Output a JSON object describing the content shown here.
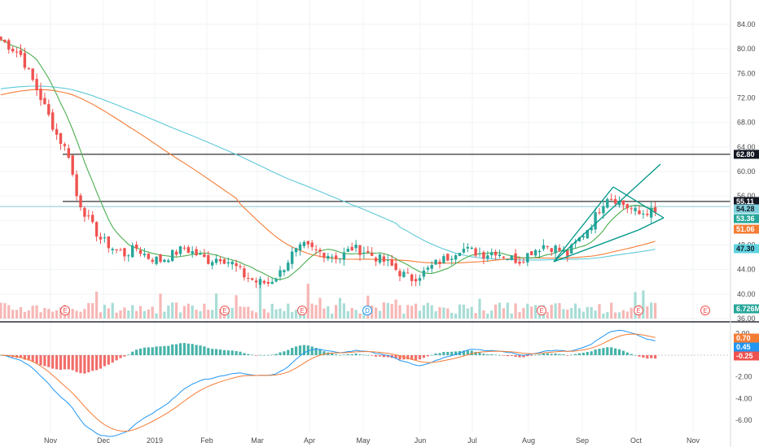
{
  "chart_data": [
    {
      "type": "candlestick",
      "panel": "price",
      "x_labels": [
        "Nov",
        "Dec",
        "2019",
        "Feb",
        "Mar",
        "Apr",
        "May",
        "Jun",
        "Jul",
        "Aug",
        "Sep",
        "Oct",
        "Nov"
      ],
      "ylim": [
        36,
        86
      ],
      "y_ticks": [
        "84.00",
        "80.00",
        "76.00",
        "72.00",
        "68.00",
        "64.00",
        "60.00",
        "56.00",
        "52.00",
        "48.00",
        "44.00",
        "40.00",
        "36.00"
      ],
      "price_path": [
        [
          0,
          81.5
        ],
        [
          5,
          79
        ],
        [
          10,
          72
        ],
        [
          14,
          66
        ],
        [
          17,
          62.8
        ],
        [
          19,
          56
        ],
        [
          22,
          52
        ],
        [
          25,
          49
        ],
        [
          28,
          47.5
        ],
        [
          31,
          46.5
        ],
        [
          34,
          47.5
        ],
        [
          37,
          46
        ],
        [
          40,
          45.5
        ],
        [
          43,
          46.5
        ],
        [
          46,
          47.5
        ],
        [
          49,
          46.5
        ],
        [
          52,
          45.5
        ],
        [
          55,
          46
        ],
        [
          58,
          45
        ],
        [
          61,
          43
        ],
        [
          64,
          42
        ],
        [
          67,
          41.8
        ],
        [
          70,
          43.5
        ],
        [
          73,
          46.5
        ],
        [
          76,
          47.8
        ],
        [
          79,
          47
        ],
        [
          82,
          46.5
        ],
        [
          85,
          46
        ],
        [
          88,
          47.5
        ],
        [
          91,
          47
        ],
        [
          94,
          46
        ],
        [
          97,
          45
        ],
        [
          100,
          43.5
        ],
        [
          103,
          42.5
        ],
        [
          106,
          43.5
        ],
        [
          109,
          45
        ],
        [
          112,
          46
        ],
        [
          115,
          47.5
        ],
        [
          118,
          47
        ],
        [
          121,
          46.5
        ],
        [
          124,
          47
        ],
        [
          127,
          46
        ],
        [
          130,
          45.5
        ],
        [
          133,
          47
        ],
        [
          136,
          48
        ],
        [
          139,
          47.5
        ],
        [
          142,
          46.5
        ],
        [
          145,
          49
        ],
        [
          148,
          51.5
        ],
        [
          150,
          54
        ],
        [
          152,
          56
        ],
        [
          154,
          55.5
        ],
        [
          157,
          54.2
        ],
        [
          160,
          53
        ],
        [
          162,
          53.5
        ],
        [
          164,
          53.36
        ]
      ],
      "levels": [
        {
          "label": "62.80",
          "value": 62.8,
          "color": "#000000"
        },
        {
          "label": "55.11",
          "value": 55.11,
          "color": "#000000"
        },
        {
          "label": "54.28",
          "value": 54.28,
          "color": "#89c9cf"
        }
      ],
      "price_tags": [
        {
          "label": "62.80",
          "value": 62.8,
          "bg": "#131722",
          "fg": "#ffffff"
        },
        {
          "label": "55.11",
          "value": 55.11,
          "bg": "#131722",
          "fg": "#ffffff"
        },
        {
          "label": "54.28",
          "value": 54.28,
          "bg": "#7fd0dc",
          "fg": "#131722"
        },
        {
          "label": "53.36",
          "value": 53.36,
          "bg": "#26a69a",
          "fg": "#ffffff"
        },
        {
          "label": "51.06",
          "value": 51.06,
          "bg": "#f57c35",
          "fg": "#ffffff"
        },
        {
          "label": "47.30",
          "value": 47.3,
          "bg": "#5fd3e0",
          "fg": "#131722"
        }
      ],
      "volume_tag": {
        "label": "6.726M",
        "bg": "#26a69a",
        "fg": "#ffffff"
      },
      "event_markers": [
        "E",
        "E",
        "E",
        "D",
        "E",
        "E",
        "E"
      ],
      "colors": {
        "up": "#26a69a",
        "down": "#ef5350",
        "ma_short": "#4caf50",
        "ma_mid": "#f57c35",
        "ma_long": "#5fc9d9",
        "pattern": "#009688"
      }
    },
    {
      "type": "macd",
      "panel": "indicator",
      "ylim": [
        -7,
        2.8
      ],
      "y_ticks": [
        "2.00",
        "0.00",
        "-2.00",
        "-4.00",
        "-6.00"
      ],
      "values_tags": [
        {
          "label": "0.70",
          "value": 0.7,
          "bg": "#f57c35",
          "fg": "#ffffff"
        },
        {
          "label": "0.45",
          "value": 0.45,
          "bg": "#2196f3",
          "fg": "#ffffff"
        },
        {
          "label": "-0.25",
          "value": -0.25,
          "bg": "#ef5350",
          "fg": "#ffffff"
        }
      ],
      "colors": {
        "macd": "#2196f3",
        "signal": "#f57c35",
        "hist_up": "#26a69a",
        "hist_down": "#ef5350"
      }
    }
  ]
}
